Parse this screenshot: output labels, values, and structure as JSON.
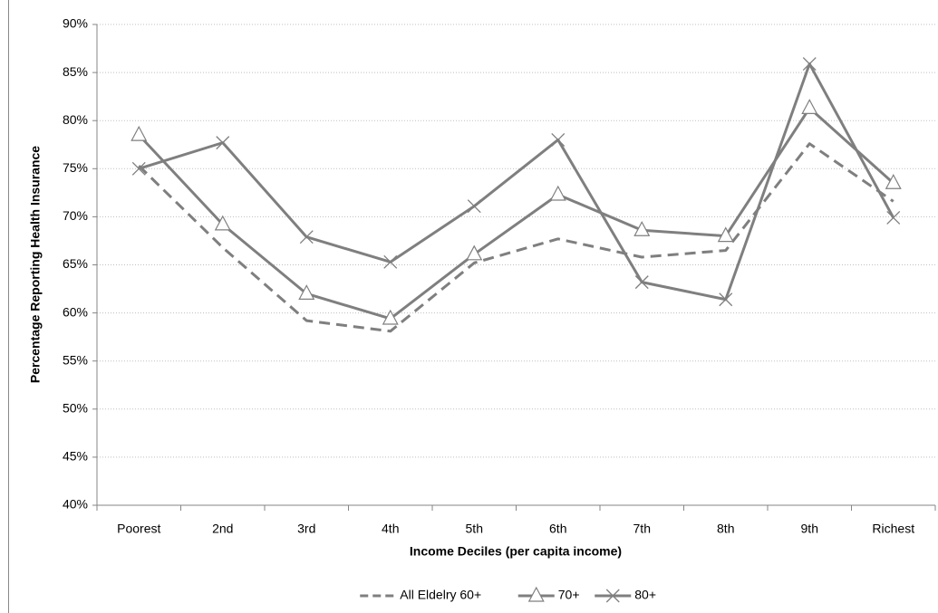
{
  "chart_data": {
    "type": "line",
    "x_label": "Income Deciles (per capita income)",
    "y_label": "Percentage Reporting Health Insurance",
    "categories": [
      "Poorest",
      "2nd",
      "3rd",
      "4th",
      "5th",
      "6th",
      "7th",
      "8th",
      "9th",
      "Richest"
    ],
    "series": [
      {
        "name": "All Eldelry 60+",
        "color": "#7f7f7f",
        "dashed": true,
        "marker": "none",
        "values": [
          75.3,
          66.8,
          59.2,
          58.1,
          65.2,
          67.7,
          65.8,
          66.5,
          77.6,
          71.6
        ]
      },
      {
        "name": "70+",
        "color": "#7f7f7f",
        "dashed": false,
        "marker": "triangle",
        "values": [
          78.5,
          69.2,
          62.0,
          59.4,
          66.1,
          72.3,
          68.6,
          68.0,
          81.3,
          73.5
        ]
      },
      {
        "name": "80+",
        "color": "#7f7f7f",
        "dashed": false,
        "marker": "x",
        "values": [
          75.0,
          77.7,
          67.9,
          65.3,
          71.1,
          78.0,
          63.2,
          61.4,
          85.9,
          69.9
        ]
      }
    ],
    "ylim": [
      40,
      90
    ],
    "yticks": [
      {
        "value": 40,
        "label": "40%"
      },
      {
        "value": 45,
        "label": "45%"
      },
      {
        "value": 50,
        "label": "50%"
      },
      {
        "value": 55,
        "label": "55%"
      },
      {
        "value": 60,
        "label": "60%"
      },
      {
        "value": 65,
        "label": "65%"
      },
      {
        "value": 70,
        "label": "70%"
      },
      {
        "value": 75,
        "label": "75%"
      },
      {
        "value": 80,
        "label": "80%"
      },
      {
        "value": 85,
        "label": "85%"
      },
      {
        "value": 90,
        "label": "90%"
      }
    ],
    "grid": true,
    "legend": "bottom"
  }
}
